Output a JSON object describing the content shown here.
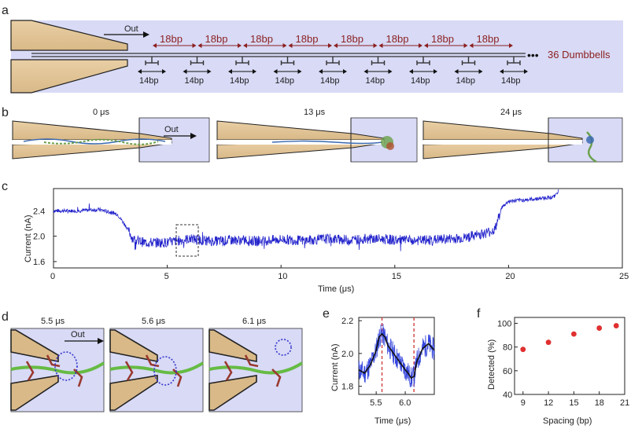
{
  "panels": {
    "a": {
      "label": "a",
      "out_label": "Out",
      "spacing_labels": [
        "18bp",
        "18bp",
        "18bp",
        "18bp",
        "18bp",
        "18bp",
        "18bp",
        "18bp"
      ],
      "dumbbell_labels": [
        "14bp",
        "14bp",
        "14bp",
        "14bp",
        "14bp",
        "14bp",
        "14bp",
        "14bp",
        "14bp"
      ],
      "ellipsis": "•••",
      "count_label": "36 Dumbbells"
    },
    "b": {
      "label": "b",
      "out_label": "Out",
      "times": [
        "0 μs",
        "13 μs",
        "24 μs"
      ]
    },
    "c": {
      "label": "c",
      "chart_data": {
        "type": "line",
        "xlabel": "Time (μs)",
        "ylabel": "Current (nA)",
        "xlim": [
          0,
          25
        ],
        "ylim": [
          1.5,
          2.75
        ],
        "xticks": [
          "0",
          "5",
          "10",
          "15",
          "20",
          "25"
        ],
        "xtick_values": [
          0,
          5,
          10,
          15,
          20,
          25
        ],
        "yticks": [
          "1.6",
          "2.0",
          "2.4"
        ],
        "ytick_values": [
          1.6,
          2.0,
          2.4
        ],
        "color": "#2222cc",
        "x": [
          0,
          1,
          2,
          2.8,
          3.2,
          3.5,
          4,
          5,
          6,
          7,
          8,
          9,
          10,
          11,
          12,
          13,
          14,
          15,
          16,
          17,
          18,
          19,
          19.4,
          19.7,
          20,
          21,
          22,
          22.2
        ],
        "y": [
          2.4,
          2.4,
          2.42,
          2.35,
          2.15,
          1.95,
          1.9,
          1.9,
          1.96,
          1.92,
          1.94,
          1.92,
          1.95,
          1.93,
          1.96,
          1.94,
          1.96,
          1.94,
          1.93,
          1.95,
          1.97,
          2.05,
          2.1,
          2.45,
          2.55,
          2.58,
          2.62,
          2.72
        ]
      }
    },
    "d": {
      "label": "d",
      "out_label": "Out",
      "times": [
        "5.5 μs",
        "5.6 μs",
        "6.1 μs"
      ]
    },
    "e": {
      "label": "e",
      "chart_data": {
        "type": "line",
        "xlabel": "Time (μs)",
        "ylabel": "Current (nA)",
        "xlim": [
          5.2,
          6.5
        ],
        "ylim": [
          1.75,
          2.22
        ],
        "xticks": [
          "5.5",
          "6.0"
        ],
        "xtick_values": [
          5.5,
          6.0
        ],
        "yticks": [
          "1.8",
          "2.0",
          "2.2"
        ],
        "ytick_values": [
          1.8,
          2.0,
          2.2
        ],
        "raw_color": "#3344dd",
        "smooth_color": "#111111",
        "marker_color": "#d04040",
        "markers_x": [
          5.6,
          6.15
        ],
        "x": [
          5.2,
          5.3,
          5.4,
          5.5,
          5.55,
          5.6,
          5.65,
          5.7,
          5.8,
          5.9,
          6.0,
          6.05,
          6.1,
          6.15,
          6.2,
          6.3,
          6.4,
          6.5
        ],
        "y": [
          1.9,
          1.88,
          1.93,
          2.02,
          2.1,
          2.12,
          2.1,
          2.05,
          2.0,
          1.95,
          1.9,
          1.88,
          1.85,
          1.86,
          1.95,
          2.03,
          2.06,
          2.02
        ]
      }
    },
    "f": {
      "label": "f",
      "chart_data": {
        "type": "scatter",
        "xlabel": "Spacing (bp)",
        "ylabel": "Detected (%)",
        "xlim": [
          8,
          21
        ],
        "ylim": [
          40,
          105
        ],
        "xticks": [
          "9",
          "12",
          "15",
          "18",
          "21"
        ],
        "xtick_values": [
          9,
          12,
          15,
          18,
          21
        ],
        "yticks": [
          "40",
          "60",
          "80",
          "100"
        ],
        "ytick_values": [
          40,
          60,
          80,
          100
        ],
        "color": "#e03030",
        "x": [
          9,
          12,
          15,
          18,
          20
        ],
        "y": [
          78,
          84,
          91,
          96,
          98
        ]
      }
    }
  }
}
